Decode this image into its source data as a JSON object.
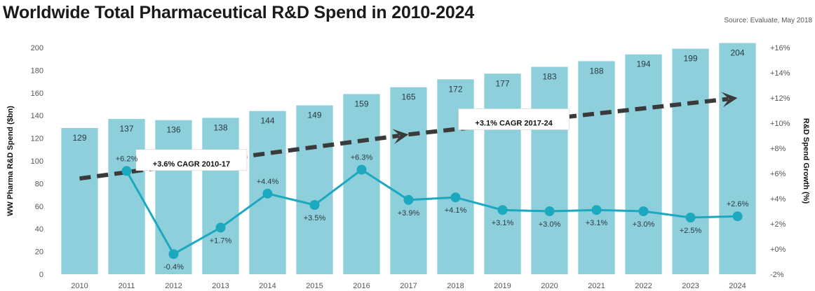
{
  "title": "Worldwide Total Pharmaceutical R&D Spend in 2010-2024",
  "source": "Source: Evaluate, May 2018",
  "colors": {
    "bar": "#8ecfdc",
    "line": "#1ca8bf",
    "arrow": "#3a3a3a",
    "label_box": "#ffffff"
  },
  "chart_data": {
    "type": "bar",
    "categories": [
      "2010",
      "2011",
      "2012",
      "2013",
      "2014",
      "2015",
      "2016",
      "2017",
      "2018",
      "2019",
      "2020",
      "2021",
      "2022",
      "2023",
      "2024"
    ],
    "series": [
      {
        "values": [
          129,
          137,
          136,
          138,
          144,
          149,
          159,
          165,
          172,
          177,
          183,
          188,
          194,
          199,
          204
        ]
      },
      {
        "type": "line",
        "axis": "right",
        "values": [
          null,
          6.2,
          -0.4,
          1.7,
          4.4,
          3.5,
          6.3,
          3.9,
          4.1,
          3.1,
          3.0,
          3.1,
          3.0,
          2.5,
          2.6
        ],
        "labels": [
          "",
          "+6.2%",
          "-0.4%",
          "+1.7%",
          "+4.4%",
          "+3.5%",
          "+6.3%",
          "+3.9%",
          "+4.1%",
          "+3.1%",
          "+3.0%",
          "+3.1%",
          "+3.0%",
          "+2.5%",
          "+2.6%"
        ]
      }
    ],
    "ylabel": "WW Pharma R&D Spend ($bn)",
    "ylim": [
      0,
      200
    ],
    "yticks": [
      0,
      20,
      40,
      60,
      80,
      100,
      120,
      140,
      160,
      180,
      200
    ],
    "y2label": "R&D Spend Growth (%)",
    "y2lim": [
      -2,
      16
    ],
    "y2ticks": [
      "-2%",
      "+0%",
      "+2%",
      "+4%",
      "+6%",
      "+8%",
      "+10%",
      "+12%",
      "+14%",
      "+16%"
    ],
    "y2tick_values": [
      -2,
      0,
      2,
      4,
      6,
      8,
      10,
      12,
      14,
      16
    ],
    "annotations": [
      {
        "text": "+3.6% CAGR 2010-17",
        "from": [
          "2010",
          5.6
        ],
        "to": [
          "2017",
          9.1
        ]
      },
      {
        "text": "+3.1% CAGR 2017-24",
        "from": [
          "2017",
          9.1
        ],
        "to": [
          "2024",
          12.0
        ]
      }
    ],
    "grid": false,
    "legend": "none"
  }
}
